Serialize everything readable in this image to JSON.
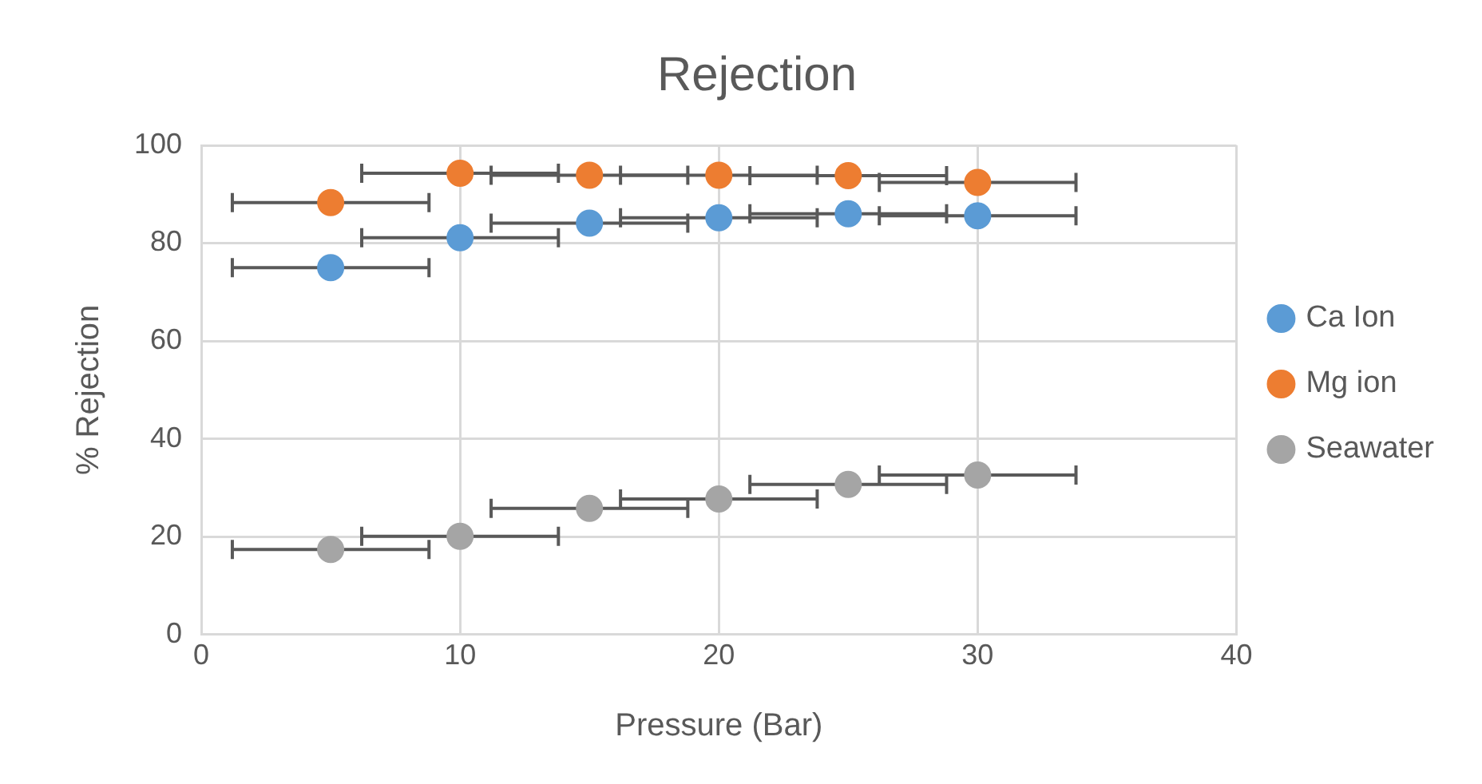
{
  "chart_data": {
    "type": "scatter",
    "title": "Rejection",
    "xlabel": "Pressure (Bar)",
    "ylabel": "% Rejection",
    "xlim": [
      0,
      40
    ],
    "xticks": [
      0,
      10,
      20,
      30,
      40
    ],
    "ylim": [
      0,
      100
    ],
    "yticks": [
      0,
      20,
      40,
      60,
      80,
      100
    ],
    "grid": true,
    "legend": "right",
    "marker": "circle",
    "series": [
      {
        "name": "Ca Ion",
        "color": "#5b9bd5",
        "x": [
          5,
          10,
          15,
          20,
          25,
          30
        ],
        "values": [
          75.0,
          81.1,
          84.1,
          85.2,
          86.0,
          85.6
        ],
        "xerrors": [
          3.8,
          3.8,
          3.8,
          3.8,
          3.8,
          3.8
        ]
      },
      {
        "name": "Mg ion",
        "color": "#ed7d31",
        "x": [
          5,
          10,
          15,
          20,
          25,
          30
        ],
        "values": [
          88.3,
          94.3,
          93.9,
          93.9,
          93.8,
          92.4
        ],
        "xerrors": [
          3.8,
          3.8,
          3.8,
          3.8,
          3.8,
          3.8
        ]
      },
      {
        "name": "Seawater",
        "color": "#a5a5a5",
        "x": [
          5,
          10,
          15,
          20,
          25,
          30
        ],
        "values": [
          17.4,
          20.1,
          25.8,
          27.7,
          30.7,
          32.6
        ],
        "xerrors": [
          3.8,
          3.8,
          3.8,
          3.8,
          3.8,
          3.8
        ]
      }
    ]
  }
}
